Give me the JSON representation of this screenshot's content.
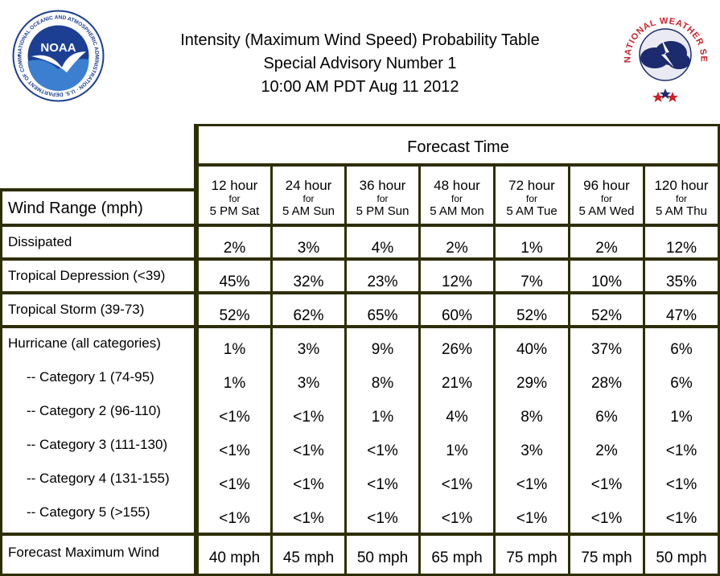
{
  "header": {
    "title_line1": "Intensity (Maximum Wind Speed) Probability Table",
    "title_line2": "Special Advisory Number 1",
    "title_line3": "10:00 AM PDT Aug 11 2012"
  },
  "logos": {
    "noaa_ring_text": "NATIONAL OCEANIC AND ATMOSPHERIC ADMINISTRATION · U.S. DEPARTMENT OF COMMERCE ·",
    "noaa_center_text": "NOAA",
    "nws_ring_text": "NATIONAL WEATHER SERVICE"
  },
  "table": {
    "forecast_time_label": "Forecast Time",
    "wind_range_label": "Wind Range (mph)",
    "columns": [
      {
        "hour": "12 hour",
        "for": "for",
        "when": "5 PM Sat"
      },
      {
        "hour": "24 hour",
        "for": "for",
        "when": "5 AM Sun"
      },
      {
        "hour": "36 hour",
        "for": "for",
        "when": "5 PM Sun"
      },
      {
        "hour": "48 hour",
        "for": "for",
        "when": "5 AM Mon"
      },
      {
        "hour": "72 hour",
        "for": "for",
        "when": "5 AM Tue"
      },
      {
        "hour": "96 hour",
        "for": "for",
        "when": "5 AM Wed"
      },
      {
        "hour": "120 hour",
        "for": "for",
        "when": "5 AM Thu"
      }
    ],
    "rows": [
      {
        "label": "Dissipated",
        "values": [
          "2%",
          "3%",
          "4%",
          "2%",
          "1%",
          "2%",
          "12%"
        ]
      },
      {
        "label": "Tropical Depression (<39)",
        "values": [
          "45%",
          "32%",
          "23%",
          "12%",
          "7%",
          "10%",
          "35%"
        ]
      },
      {
        "label": "Tropical Storm (39-73)",
        "values": [
          "52%",
          "62%",
          "65%",
          "60%",
          "52%",
          "52%",
          "47%"
        ]
      },
      {
        "label": "Hurricane (all categories)",
        "values": [
          "1%",
          "3%",
          "9%",
          "26%",
          "40%",
          "37%",
          "6%"
        ]
      },
      {
        "label": "-- Category 1 (74-95)",
        "values": [
          "1%",
          "3%",
          "8%",
          "21%",
          "29%",
          "28%",
          "6%"
        ]
      },
      {
        "label": "-- Category 2 (96-110)",
        "values": [
          "<1%",
          "<1%",
          "1%",
          "4%",
          "8%",
          "6%",
          "1%"
        ]
      },
      {
        "label": "-- Category 3 (111-130)",
        "values": [
          "<1%",
          "<1%",
          "<1%",
          "1%",
          "3%",
          "2%",
          "<1%"
        ]
      },
      {
        "label": "-- Category 4 (131-155)",
        "values": [
          "<1%",
          "<1%",
          "<1%",
          "<1%",
          "<1%",
          "<1%",
          "<1%"
        ]
      },
      {
        "label": "-- Category 5 (>155)",
        "values": [
          "<1%",
          "<1%",
          "<1%",
          "<1%",
          "<1%",
          "<1%",
          "<1%"
        ]
      },
      {
        "label": "Forecast Maximum Wind",
        "values": [
          "40 mph",
          "45 mph",
          "50 mph",
          "65 mph",
          "75 mph",
          "75 mph",
          "50 mph"
        ]
      }
    ]
  },
  "colors": {
    "grid": "#2e2e06",
    "noaa_blue": "#1c3f94",
    "noaa_light_blue": "#3c7fd0",
    "nws_red": "#cc2229",
    "nws_navy": "#1c2a6e"
  }
}
